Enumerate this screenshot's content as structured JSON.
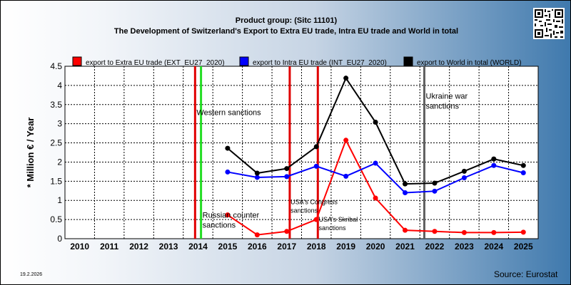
{
  "header": {
    "title": "Product group:  (Sitc 11101)",
    "subtitle": "The Development of Switzerland's Export to Extra EU trade, Intra EU trade and World in total"
  },
  "footer": {
    "date": "19.2.2026",
    "source": "Source: Eurostat"
  },
  "chart_data": {
    "type": "line",
    "ylabel": "* Million € / Year",
    "xlabel": "",
    "ylim": [
      0,
      4.5
    ],
    "grid": true,
    "legend_placement": "top",
    "categories": [
      "2010",
      "2011",
      "2012",
      "2013",
      "2014",
      "2015",
      "2016",
      "2017",
      "2018",
      "2019",
      "2020",
      "2021",
      "2022",
      "2023",
      "2024",
      "2025"
    ],
    "yticks": [
      "0",
      "0.5",
      "1",
      "1.5",
      "2",
      "2.5",
      "3",
      "3.5",
      "4",
      "4.5"
    ],
    "series": [
      {
        "name": "export to Extra EU trade (EXT_EU27_2020)",
        "color": "#ff0000",
        "values": [
          null,
          null,
          null,
          null,
          null,
          0.62,
          0.1,
          0.19,
          0.5,
          2.57,
          1.06,
          0.22,
          0.19,
          0.16,
          0.16,
          0.17
        ]
      },
      {
        "name": "export to Intra EU trade (INT_EU27_2020)",
        "color": "#0000ff",
        "values": [
          null,
          null,
          null,
          null,
          null,
          1.74,
          1.6,
          1.62,
          1.89,
          1.63,
          1.97,
          1.2,
          1.24,
          1.59,
          1.91,
          1.72
        ]
      },
      {
        "name": "export to World in total (WORLD)",
        "color": "#000000",
        "values": [
          null,
          null,
          null,
          null,
          null,
          2.36,
          1.71,
          1.83,
          2.4,
          4.19,
          3.04,
          1.43,
          1.45,
          1.76,
          2.08,
          1.91
        ]
      }
    ],
    "events": [
      {
        "label": "Western sanctions",
        "x": 2013.9,
        "color": "#e00000",
        "label_x": 2013.95,
        "label_y": 3.23
      },
      {
        "label": "",
        "x": 2014.1,
        "color": "#22dd22"
      },
      {
        "label": "Russian counter sanctions",
        "x": 2014.1,
        "label_x": 2014.15,
        "label_y": 0.55,
        "no_line": true
      },
      {
        "label": "USA's Congress sanctions",
        "x": 2017.1,
        "color": "#e00000",
        "label_x": 2017.13,
        "label_y": 0.9
      },
      {
        "label": "USA's Skribal sanctions",
        "x": 2018.05,
        "color": "#e00000",
        "label_x": 2018.08,
        "label_y": 0.45
      },
      {
        "label": "Ukraine war sanctions",
        "x": 2021.65,
        "color": "#606060",
        "label_x": 2021.7,
        "label_y": 3.65
      }
    ]
  }
}
